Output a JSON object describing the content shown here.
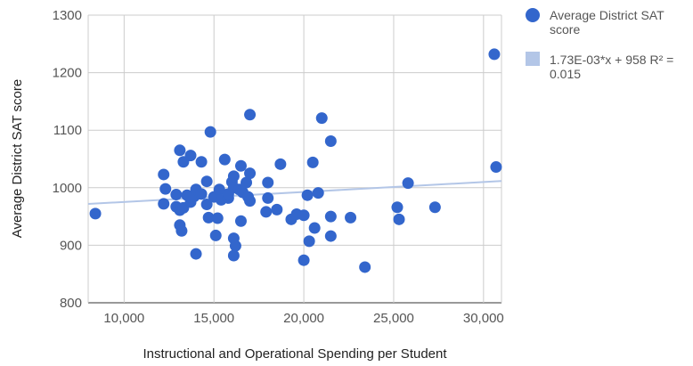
{
  "chart_data": {
    "type": "scatter",
    "title": "",
    "xlabel": "Instructional and Operational Spending per Student",
    "ylabel": "Average District SAT score",
    "xlim": [
      8000,
      31000
    ],
    "ylim": [
      800,
      1300
    ],
    "x_ticks": [
      10000,
      15000,
      20000,
      25000,
      30000
    ],
    "x_tick_labels": [
      "10,000",
      "15,000",
      "20,000",
      "25,000",
      "30,000"
    ],
    "y_ticks": [
      800,
      900,
      1000,
      1100,
      1200,
      1300
    ],
    "y_tick_labels": [
      "800",
      "900",
      "1000",
      "1100",
      "1200",
      "1300"
    ],
    "grid": true,
    "legend_position": "right",
    "series": [
      {
        "name": "Average District SAT score",
        "color": "#3366cc",
        "points": [
          [
            8400,
            955
          ],
          [
            12200,
            1023
          ],
          [
            12200,
            972
          ],
          [
            12300,
            998
          ],
          [
            12900,
            988
          ],
          [
            12900,
            967
          ],
          [
            13100,
            1065
          ],
          [
            13100,
            961
          ],
          [
            13100,
            935
          ],
          [
            13200,
            925
          ],
          [
            13300,
            1045
          ],
          [
            13300,
            965
          ],
          [
            13500,
            987
          ],
          [
            13700,
            1056
          ],
          [
            13700,
            975
          ],
          [
            13900,
            985
          ],
          [
            14000,
            885
          ],
          [
            14000,
            997
          ],
          [
            14300,
            1045
          ],
          [
            14300,
            989
          ],
          [
            14600,
            1011
          ],
          [
            14600,
            971
          ],
          [
            14700,
            948
          ],
          [
            14800,
            1097
          ],
          [
            15000,
            984
          ],
          [
            15100,
            917
          ],
          [
            15200,
            947
          ],
          [
            15300,
            997
          ],
          [
            15400,
            979
          ],
          [
            15600,
            1049
          ],
          [
            15800,
            982
          ],
          [
            15800,
            989
          ],
          [
            16000,
            1010
          ],
          [
            16100,
            1000
          ],
          [
            16100,
            1020
          ],
          [
            16100,
            912
          ],
          [
            16100,
            882
          ],
          [
            16200,
            899
          ],
          [
            16400,
            997
          ],
          [
            16500,
            1038
          ],
          [
            16500,
            942
          ],
          [
            16600,
            992
          ],
          [
            16800,
            1009
          ],
          [
            16900,
            984
          ],
          [
            17000,
            1127
          ],
          [
            17000,
            1025
          ],
          [
            17000,
            977
          ],
          [
            17900,
            958
          ],
          [
            18000,
            1009
          ],
          [
            18000,
            982
          ],
          [
            18500,
            962
          ],
          [
            18700,
            1041
          ],
          [
            19300,
            945
          ],
          [
            19600,
            954
          ],
          [
            20000,
            874
          ],
          [
            20000,
            952
          ],
          [
            20200,
            987
          ],
          [
            20300,
            907
          ],
          [
            20500,
            1044
          ],
          [
            20600,
            930
          ],
          [
            20800,
            991
          ],
          [
            21000,
            1121
          ],
          [
            21500,
            1081
          ],
          [
            21500,
            950
          ],
          [
            21500,
            916
          ],
          [
            22600,
            948
          ],
          [
            23400,
            862
          ],
          [
            25200,
            966
          ],
          [
            25300,
            945
          ],
          [
            25800,
            1008
          ],
          [
            27300,
            966
          ],
          [
            30600,
            1232
          ],
          [
            30700,
            1036
          ]
        ]
      }
    ],
    "trendline": {
      "name": "1.73E-03*x + 958 R² = 0.015",
      "label_line1": "1.73E-03*x + 958 R² =",
      "label_line2": "0.015",
      "slope": 0.00173,
      "intercept": 958,
      "r_squared": 0.015,
      "color": "#b3c6e7"
    },
    "legend": {
      "series_label_line1": "Average District SAT",
      "series_label_line2": "score"
    }
  }
}
